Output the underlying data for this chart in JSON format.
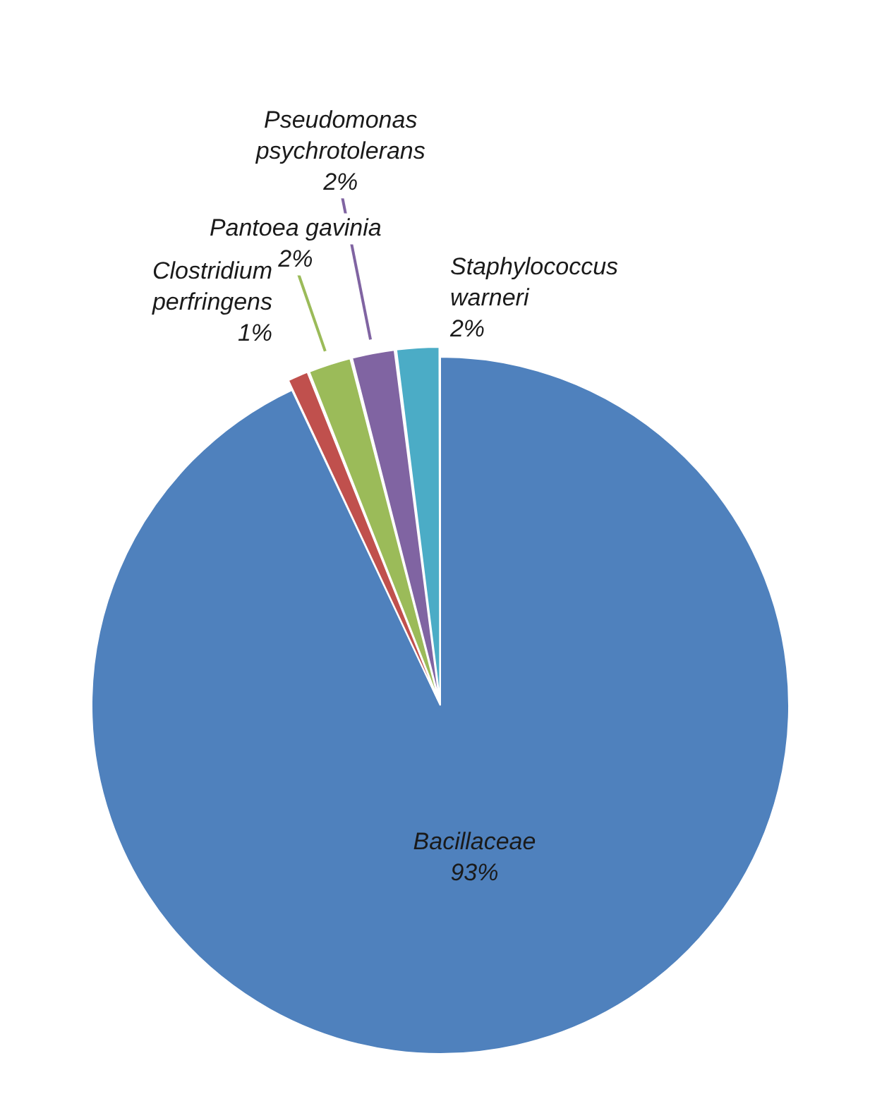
{
  "chart_data": {
    "type": "pie",
    "categories": [
      "Bacillaceae",
      "Clostridium perfringens",
      "Pantoea gavinia",
      "Pseudomonas psychrotolerans",
      "Staphylococcus warneri"
    ],
    "values": [
      93,
      1,
      2,
      2,
      2
    ],
    "colors": [
      "#4f81bd",
      "#c0504d",
      "#9bbb59",
      "#8064a2",
      "#4bacc6"
    ],
    "value_labels": [
      "93%",
      "1%",
      "2%",
      "2%",
      "2%"
    ],
    "legend": false
  }
}
